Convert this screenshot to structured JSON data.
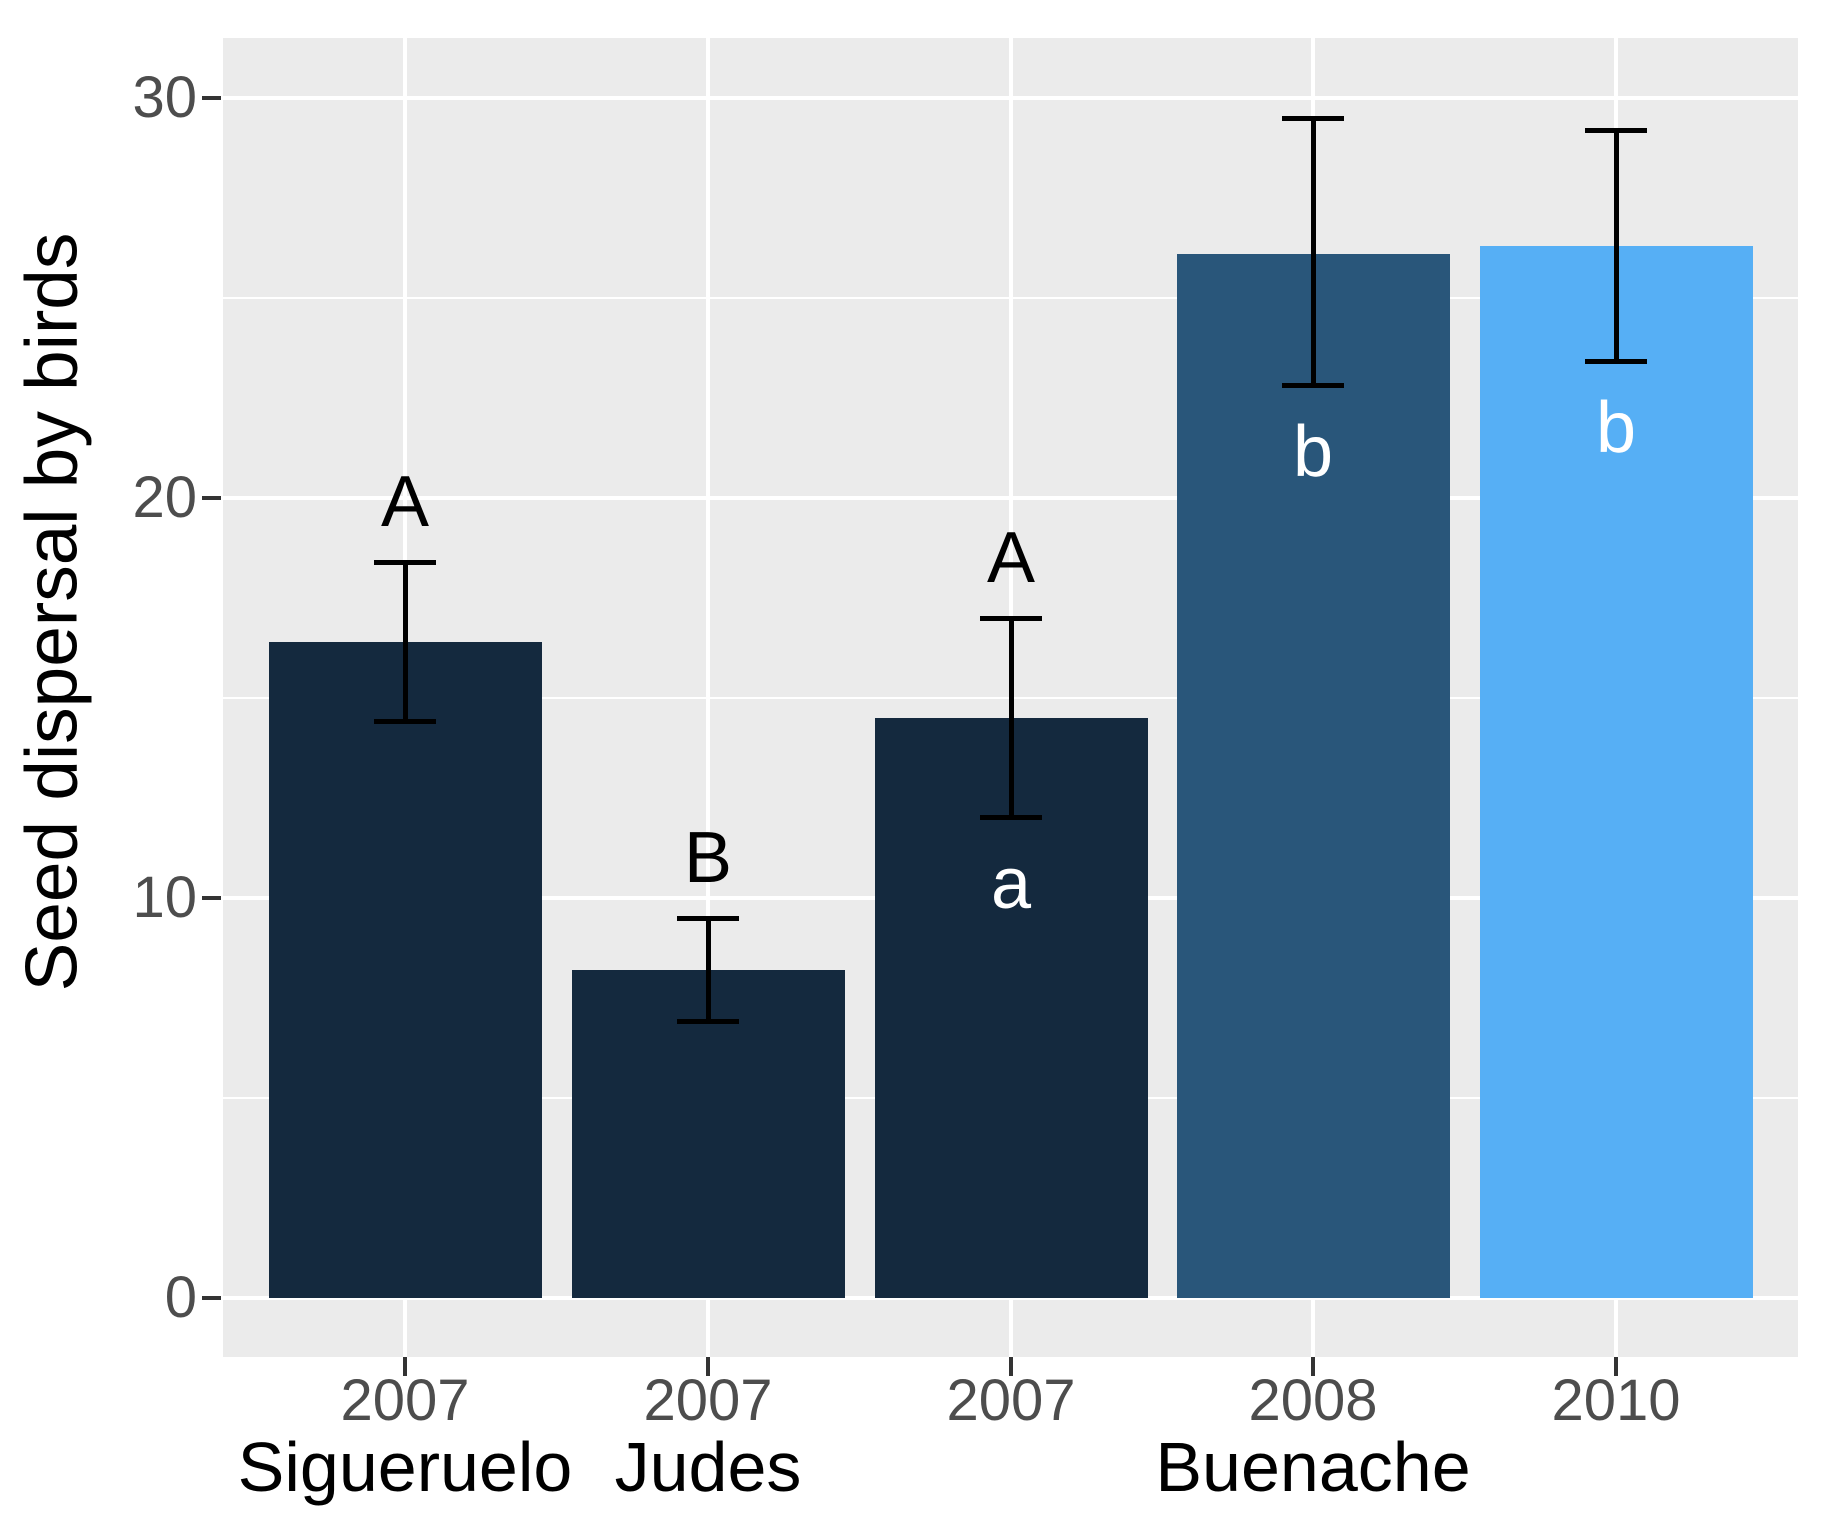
{
  "chart_data": {
    "type": "bar",
    "title": "",
    "ylabel": "Seed dispersal by birds",
    "xlabel": "",
    "ylim": [
      0,
      31.5
    ],
    "yticks": [
      0,
      10,
      20,
      30
    ],
    "y_minor_gridlines": [
      5,
      15,
      25
    ],
    "legend_position": "none",
    "grid": "white major+minor horizontal lines, white vertical major line at each bar center, ggplot-style grey panel",
    "bars": [
      {
        "site": "Sigueruelo",
        "year": "2007",
        "value": 16.4,
        "err_low": 14.4,
        "err_high": 18.4,
        "letter_above": "A",
        "letter_inside": "",
        "color": "#14293E"
      },
      {
        "site": "Judes",
        "year": "2007",
        "value": 8.2,
        "err_low": 6.9,
        "err_high": 9.5,
        "letter_above": "B",
        "letter_inside": "",
        "color": "#14293E"
      },
      {
        "site": "Buenache",
        "year": "2007",
        "value": 14.5,
        "err_low": 12.0,
        "err_high": 17.0,
        "letter_above": "A",
        "letter_inside": "a",
        "color": "#14293E"
      },
      {
        "site": "Buenache",
        "year": "2008",
        "value": 26.1,
        "err_low": 22.8,
        "err_high": 29.5,
        "letter_above": "",
        "letter_inside": "b",
        "color": "#29567A"
      },
      {
        "site": "Buenache",
        "year": "2010",
        "value": 26.3,
        "err_low": 23.4,
        "err_high": 29.2,
        "letter_above": "",
        "letter_inside": "b",
        "color": "#56AFF5"
      }
    ],
    "group_labels": [
      {
        "label": "Sigueruelo",
        "bar_index": 0
      },
      {
        "label": "Judes",
        "bar_index": 1
      },
      {
        "label": "Buenache",
        "bar_index": 3
      }
    ]
  },
  "style": {
    "background": "#FFFFFF",
    "panel_bg": "#EBEBEB",
    "gridline_color": "#FFFFFF",
    "tick_mark_color": "#333333",
    "tick_label_color": "#4D4D4D",
    "axis_title_color": "#000000",
    "error_bar_color": "#000000",
    "letter_above_color": "#000000",
    "letter_inside_color": "#FFFFFF"
  }
}
